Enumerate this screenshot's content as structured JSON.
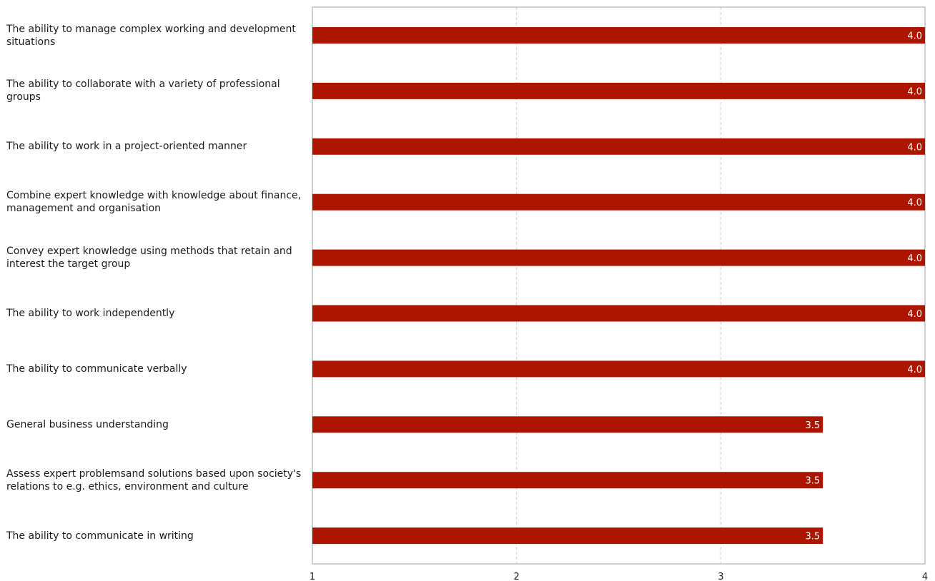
{
  "chart_data": {
    "type": "bar",
    "orientation": "horizontal",
    "title": "",
    "xlabel": "",
    "ylabel": "",
    "xlim": [
      1,
      4
    ],
    "x_ticks": [
      1,
      2,
      3,
      4
    ],
    "grid": "vertical-dashed",
    "bar_color": "#ad1500",
    "categories": [
      "The ability to manage complex working and development situations",
      "The ability to collaborate with a variety of professional groups",
      "The ability to work in a project-oriented manner",
      "Combine expert knowledge with knowledge about finance, management and organisation",
      "Convey expert knowledge using methods that retain and interest the target group",
      "The ability to work independently",
      "The ability to communicate verbally",
      "General business understanding",
      "Assess expert problemsand solutions based upon society's relations to e.g. ethics, environment and culture",
      "The ability to communicate in writing"
    ],
    "values": [
      4.0,
      4.0,
      4.0,
      4.0,
      4.0,
      4.0,
      4.0,
      3.5,
      3.5,
      3.5
    ],
    "value_labels": [
      "4.0",
      "4.0",
      "4.0",
      "4.0",
      "4.0",
      "4.0",
      "4.0",
      "3.5",
      "3.5",
      "3.5"
    ]
  }
}
